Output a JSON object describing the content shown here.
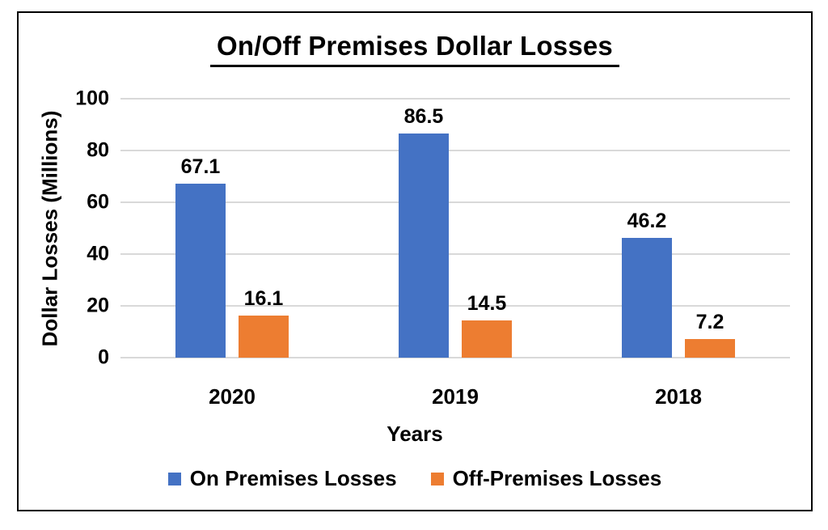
{
  "chart_data": {
    "type": "bar",
    "title": "On/Off Premises Dollar Losses",
    "categories": [
      "2020",
      "2019",
      "2018"
    ],
    "series": [
      {
        "name": "On Premises Losses",
        "color": "#4472C4",
        "values": [
          67.1,
          86.5,
          46.2
        ]
      },
      {
        "name": "Off-Premises Losses",
        "color": "#ED7D31",
        "values": [
          16.1,
          14.5,
          7.2
        ]
      }
    ],
    "xlabel": "Years",
    "ylabel": "Dollar Losses (Millions)",
    "ylim": [
      0,
      100
    ],
    "yticks": [
      0,
      20,
      40,
      60,
      80,
      100
    ],
    "grid": true,
    "data_labels": true,
    "legend_position": "bottom"
  },
  "colors": {
    "gridline": "#D9D9D9",
    "frame_border": "#000000",
    "text": "#000000",
    "background": "#FFFFFF"
  }
}
